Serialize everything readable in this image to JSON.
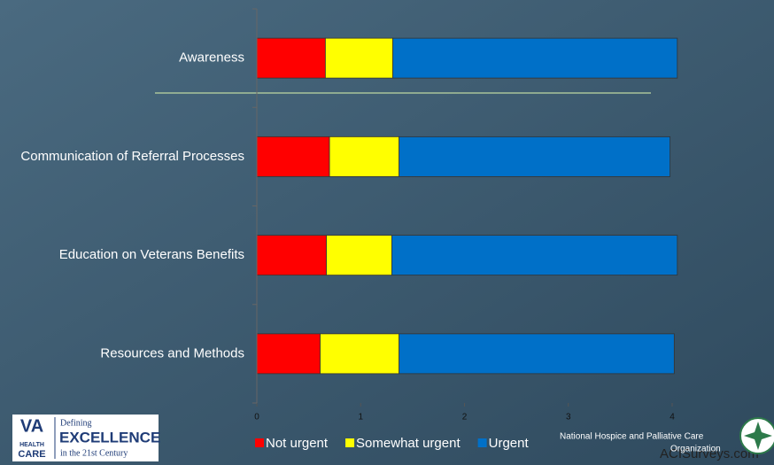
{
  "chart_data": {
    "type": "stacked_barh",
    "categories": [
      "Awareness",
      "Communication of Referral Processes",
      "Education on Veterans Benefits",
      "Resources and Methods"
    ],
    "series": [
      {
        "name": "Not urgent",
        "color": "#ff0000",
        "values": [
          0.66,
          0.7,
          0.67,
          0.61
        ]
      },
      {
        "name": "Somewhat urgent",
        "color": "#ffff00",
        "values": [
          0.65,
          0.67,
          0.63,
          0.76
        ]
      },
      {
        "name": "Urgent",
        "color": "#0070c8",
        "values": [
          2.74,
          2.61,
          2.75,
          2.65
        ]
      }
    ],
    "xlim": [
      0,
      4.9
    ],
    "xticks": [
      0,
      1,
      2,
      3,
      4
    ],
    "legend": "bottom"
  },
  "logos": {
    "va": {
      "mark": "VA",
      "line1": "HEALTH",
      "line2": "CARE",
      "defining": "Defining",
      "excellence": "EXCELLENCE",
      "century": "in the 21st Century"
    },
    "nhpco": {
      "line1": "National Hospice and Palliative Care",
      "line2": "Organization"
    },
    "watermark": "ACISurveys.com"
  }
}
